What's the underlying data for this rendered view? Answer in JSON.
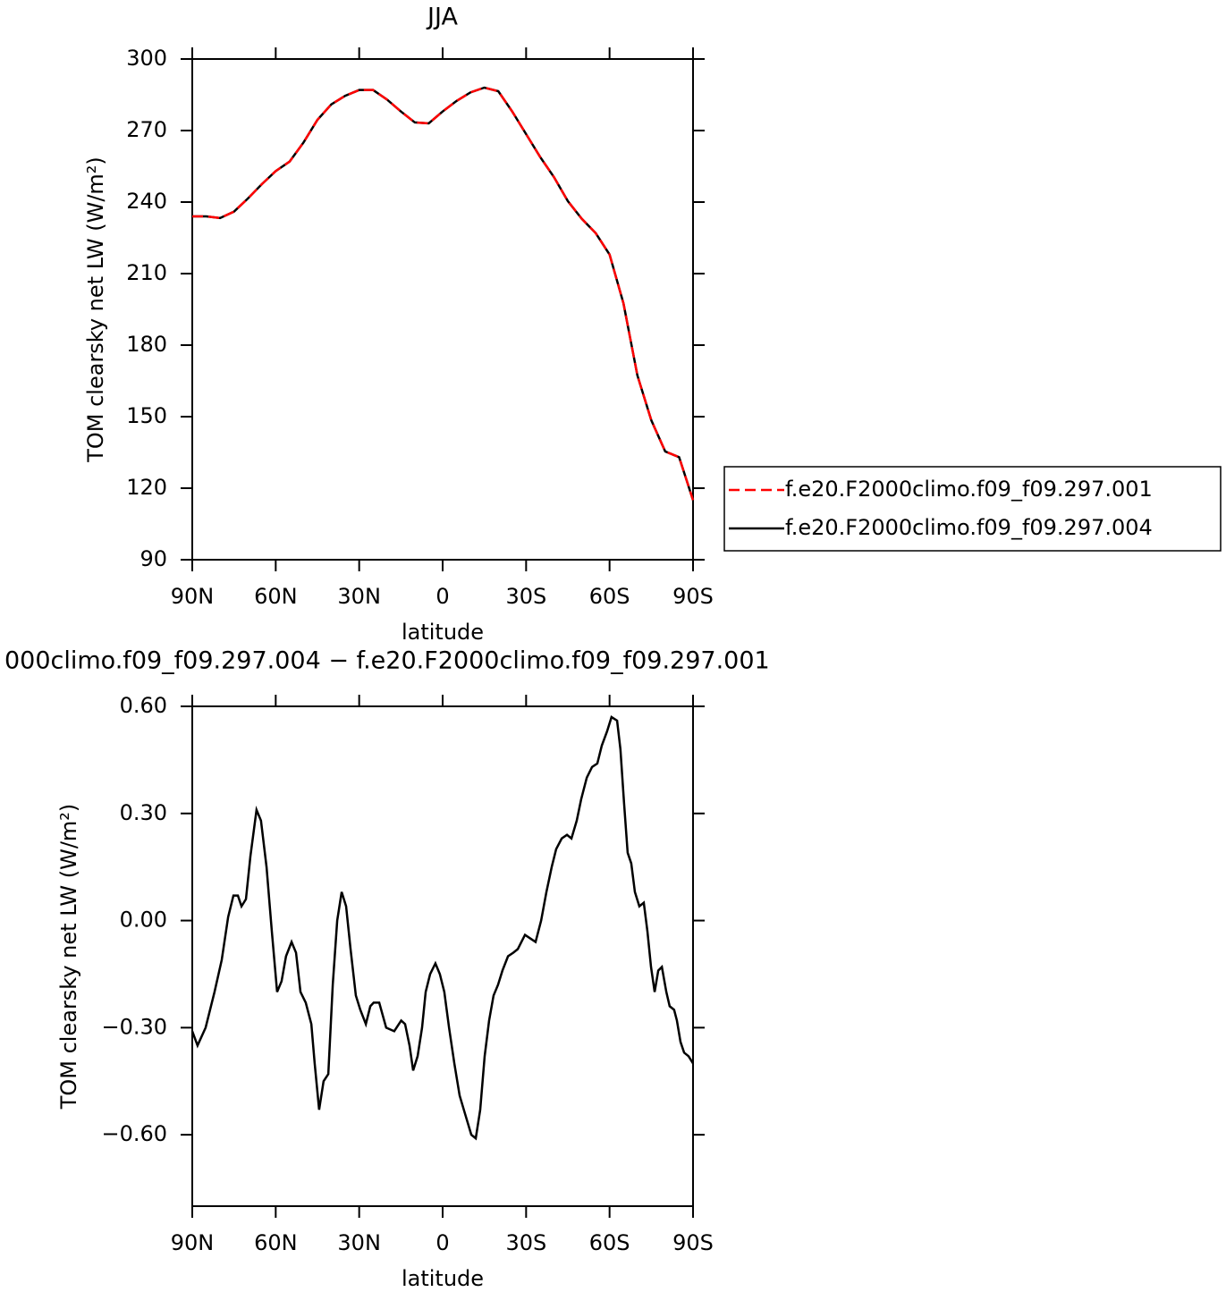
{
  "chart_data": [
    {
      "type": "line",
      "title": "JJA",
      "xlabel": "latitude",
      "ylabel": "TOM clearsky net LW (W/m²)",
      "xlim": [
        90,
        -90
      ],
      "ylim": [
        90,
        300
      ],
      "xticks": [
        {
          "value": 90,
          "label": "90N"
        },
        {
          "value": 60,
          "label": "60N"
        },
        {
          "value": 30,
          "label": "30N"
        },
        0,
        {
          "value": -30,
          "label": "30S"
        },
        {
          "value": -60,
          "label": "60S"
        },
        {
          "value": -90,
          "label": "90S"
        }
      ],
      "yticks": [
        300,
        270,
        240,
        210,
        180,
        150,
        120,
        90
      ],
      "legend": "right",
      "x": [
        90,
        85,
        80,
        75,
        70,
        65,
        60,
        55,
        50,
        45,
        40,
        35,
        30,
        25,
        20,
        15,
        10,
        5,
        0,
        -5,
        -10,
        -15,
        -20,
        -25,
        -30,
        -35,
        -40,
        -45,
        -50,
        -55,
        -60,
        -65,
        -70,
        -75,
        -80,
        -85,
        -90
      ],
      "series": [
        {
          "name": "f.e20.F2000climo.f09_f09.297.001",
          "color": "#ff0000",
          "linestyle": "dashed",
          "values": [
            234,
            234,
            233.3,
            236,
            241.5,
            247.5,
            253,
            257,
            265,
            274.5,
            281,
            284.6,
            287,
            287,
            283,
            278,
            273.4,
            273,
            278,
            282.4,
            286,
            288,
            286.5,
            278,
            268.5,
            259,
            250.5,
            240.4,
            233,
            227,
            218,
            197.5,
            167.3,
            148.5,
            135.4,
            133,
            115
          ]
        },
        {
          "name": "f.e20.F2000climo.f09_f09.297.004",
          "color": "#000000",
          "linestyle": "solid",
          "values": [
            234,
            234,
            233.3,
            236,
            241.5,
            247.5,
            253,
            257,
            265,
            274.5,
            281,
            284.6,
            287,
            287,
            283,
            278,
            273.4,
            273,
            278,
            282.4,
            286,
            288,
            286.5,
            278,
            268.5,
            259,
            250.5,
            240.4,
            233,
            227,
            218,
            197.5,
            167.3,
            148.5,
            135.4,
            133,
            115
          ]
        }
      ]
    },
    {
      "type": "line",
      "title": "000climo.f09_f09.297.004 − f.e20.F2000climo.f09_f09.297.001",
      "xlabel": "latitude",
      "ylabel": "TOM clearsky net LW (W/m²)",
      "xlim": [
        90,
        -90
      ],
      "ylim": [
        -0.8,
        0.6
      ],
      "xticks": [
        {
          "value": 90,
          "label": "90N"
        },
        {
          "value": 60,
          "label": "60N"
        },
        {
          "value": 30,
          "label": "30N"
        },
        0,
        {
          "value": -30,
          "label": "30S"
        },
        {
          "value": -60,
          "label": "60S"
        },
        {
          "value": -90,
          "label": "90S"
        }
      ],
      "yticks": [
        {
          "value": 0.6,
          "label": "0.60"
        },
        {
          "value": 0.3,
          "label": "0.30"
        },
        {
          "value": 0,
          "label": "0.00"
        },
        {
          "value": -0.3,
          "label": "−0.30"
        },
        {
          "value": -0.6,
          "label": "−0.60"
        }
      ],
      "x": [
        90,
        88.1,
        85.2,
        82.0,
        79.4,
        77.1,
        75.2,
        73.6,
        72.3,
        70.7,
        69.1,
        66.9,
        65.3,
        63.3,
        61.4,
        59.5,
        57.9,
        56.3,
        54.3,
        52.7,
        51.1,
        49.2,
        47.2,
        46.0,
        44.4,
        42.8,
        41.1,
        39.5,
        37.9,
        36.3,
        34.7,
        33.1,
        31.2,
        29.6,
        27.6,
        26.0,
        24.8,
        22.8,
        20.3,
        17.4,
        14.9,
        13.5,
        11.9,
        10.6,
        9.0,
        7.4,
        6.1,
        4.5,
        2.6,
        1.0,
        -0.6,
        -2.3,
        -4.2,
        -6.1,
        -8.0,
        -10.3,
        -11.9,
        -13.5,
        -15.1,
        -16.7,
        -18.3,
        -19.9,
        -21.5,
        -23.5,
        -25.4,
        -27.0,
        -28.3,
        -29.6,
        -31.5,
        -33.4,
        -35.4,
        -37.3,
        -39.2,
        -40.8,
        -42.8,
        -44.7,
        -46.3,
        -48.2,
        -49.8,
        -51.8,
        -53.7,
        -55.6,
        -57.2,
        -59.1,
        -60.7,
        -62.7,
        -63.9,
        -65.2,
        -66.5,
        -67.8,
        -69.1,
        -70.7,
        -72.3,
        -73.6,
        -74.9,
        -76.2,
        -77.5,
        -78.8,
        -80.4,
        -81.6,
        -83.2,
        -84.2,
        -85.5,
        -86.8,
        -88.4,
        -90
      ],
      "series": [
        {
          "color": "#000000",
          "linestyle": "solid",
          "values": [
            -0.31,
            -0.35,
            -0.3,
            -0.2,
            -0.11,
            0.01,
            0.07,
            0.07,
            0.04,
            0.06,
            0.18,
            0.31,
            0.28,
            0.15,
            -0.03,
            -0.2,
            -0.17,
            -0.1,
            -0.06,
            -0.09,
            -0.2,
            -0.23,
            -0.29,
            -0.4,
            -0.53,
            -0.45,
            -0.43,
            -0.18,
            0.0,
            0.08,
            0.04,
            -0.08,
            -0.21,
            -0.25,
            -0.29,
            -0.24,
            -0.23,
            -0.23,
            -0.3,
            -0.31,
            -0.28,
            -0.29,
            -0.35,
            -0.42,
            -0.38,
            -0.3,
            -0.2,
            -0.15,
            -0.12,
            -0.15,
            -0.2,
            -0.3,
            -0.4,
            -0.49,
            -0.54,
            -0.6,
            -0.61,
            -0.53,
            -0.38,
            -0.28,
            -0.21,
            -0.18,
            -0.14,
            -0.1,
            -0.09,
            -0.08,
            -0.06,
            -0.04,
            -0.05,
            -0.06,
            0.0,
            0.08,
            0.15,
            0.2,
            0.23,
            0.24,
            0.23,
            0.28,
            0.34,
            0.4,
            0.43,
            0.44,
            0.49,
            0.53,
            0.57,
            0.56,
            0.48,
            0.33,
            0.19,
            0.16,
            0.08,
            0.04,
            0.05,
            -0.03,
            -0.13,
            -0.2,
            -0.14,
            -0.13,
            -0.2,
            -0.24,
            -0.25,
            -0.28,
            -0.34,
            -0.37,
            -0.38,
            -0.4
          ]
        }
      ]
    }
  ]
}
